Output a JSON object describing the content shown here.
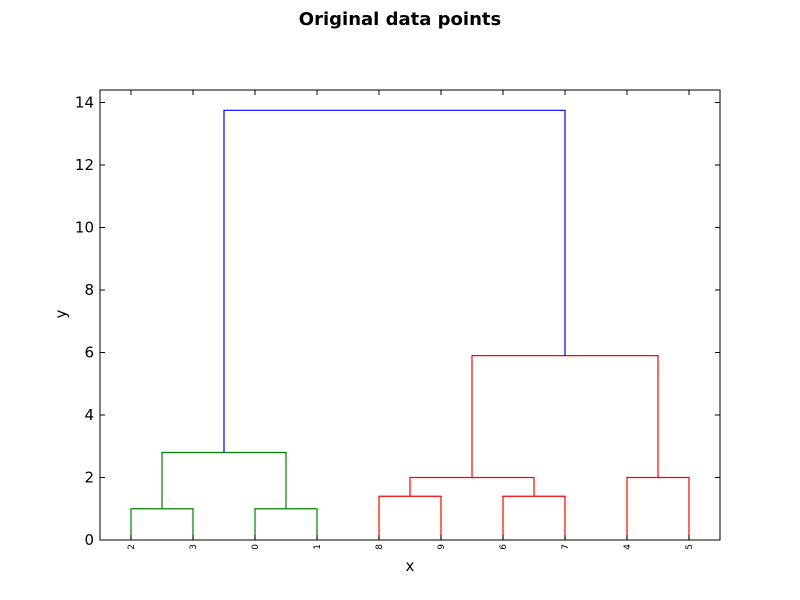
{
  "chart_data": {
    "type": "dendrogram",
    "title": "Original data points",
    "xlabel": "x",
    "ylabel": "y",
    "ylim": [
      0,
      14.4
    ],
    "yticks": [
      0,
      2,
      4,
      6,
      8,
      10,
      12,
      14
    ],
    "leaf_order": [
      "2",
      "3",
      "0",
      "1",
      "8",
      "9",
      "6",
      "7",
      "4",
      "5"
    ],
    "merges": [
      {
        "left": "2",
        "right": "3",
        "height": 1.0,
        "color": "#008000"
      },
      {
        "left": "0",
        "right": "1",
        "height": 1.0,
        "color": "#008000"
      },
      {
        "left": "[2,3]",
        "right": "[0,1]",
        "height": 2.8,
        "color": "#008000"
      },
      {
        "left": "8",
        "right": "9",
        "height": 1.4,
        "color": "#ff0000"
      },
      {
        "left": "6",
        "right": "7",
        "height": 1.4,
        "color": "#ff0000"
      },
      {
        "left": "[8,9]",
        "right": "[6,7]",
        "height": 2.0,
        "color": "#ff0000"
      },
      {
        "left": "4",
        "right": "5",
        "height": 2.0,
        "color": "#ff0000"
      },
      {
        "left": "[8,9,6,7]",
        "right": "[4,5]",
        "height": 5.9,
        "color": "#ff0000"
      },
      {
        "left": "[2,3,0,1]",
        "right": "[8,9,6,7,4,5]",
        "height": 13.75,
        "color": "#0000ff"
      }
    ]
  }
}
